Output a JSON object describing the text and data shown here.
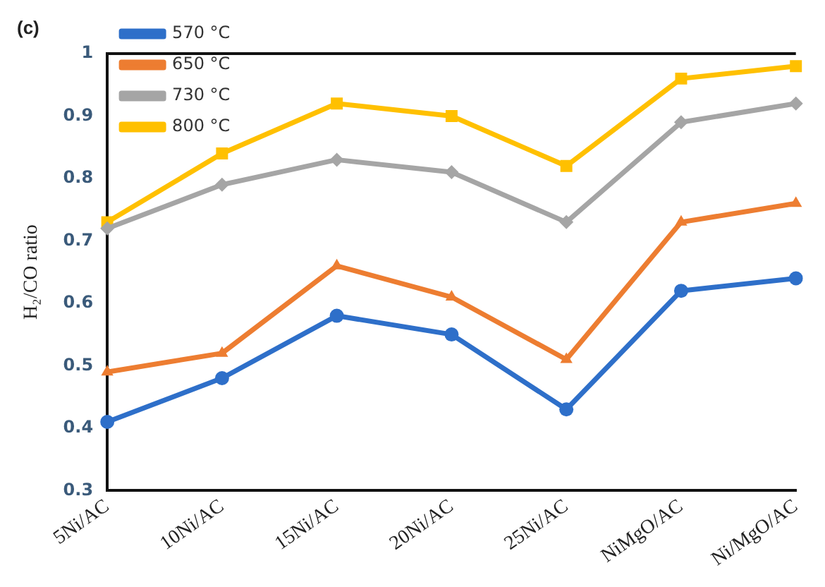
{
  "chart_data": {
    "type": "line",
    "annotations": [
      "(c)"
    ],
    "ylabel": "H₂/CO ratio",
    "categories": [
      "5Ni/AC",
      "10Ni/AC",
      "15Ni/AC",
      "20Ni/AC",
      "25Ni/AC",
      "NiMgO/AC",
      "Ni/MgO/AC"
    ],
    "series": [
      {
        "name": "570 °C",
        "color": "#2e6fc9",
        "marker": "circle",
        "values": [
          0.41,
          0.48,
          0.58,
          0.55,
          0.43,
          0.62,
          0.64
        ]
      },
      {
        "name": "650 °C",
        "color": "#ed7d31",
        "marker": "triangle",
        "values": [
          0.49,
          0.52,
          0.66,
          0.61,
          0.51,
          0.73,
          0.76
        ]
      },
      {
        "name": "730 °C",
        "color": "#a5a5a5",
        "marker": "diamond",
        "values": [
          0.72,
          0.79,
          0.83,
          0.81,
          0.73,
          0.89,
          0.92
        ]
      },
      {
        "name": "800 °C",
        "color": "#ffc000",
        "marker": "square",
        "values": [
          0.73,
          0.84,
          0.92,
          0.9,
          0.82,
          0.96,
          0.98
        ]
      }
    ],
    "ylim": [
      0.3,
      1
    ],
    "yticks": [
      0.3,
      0.4,
      0.5,
      0.6,
      0.7,
      0.8,
      0.9,
      1
    ],
    "grid": false,
    "legend": "top left",
    "line_style": "solid"
  }
}
